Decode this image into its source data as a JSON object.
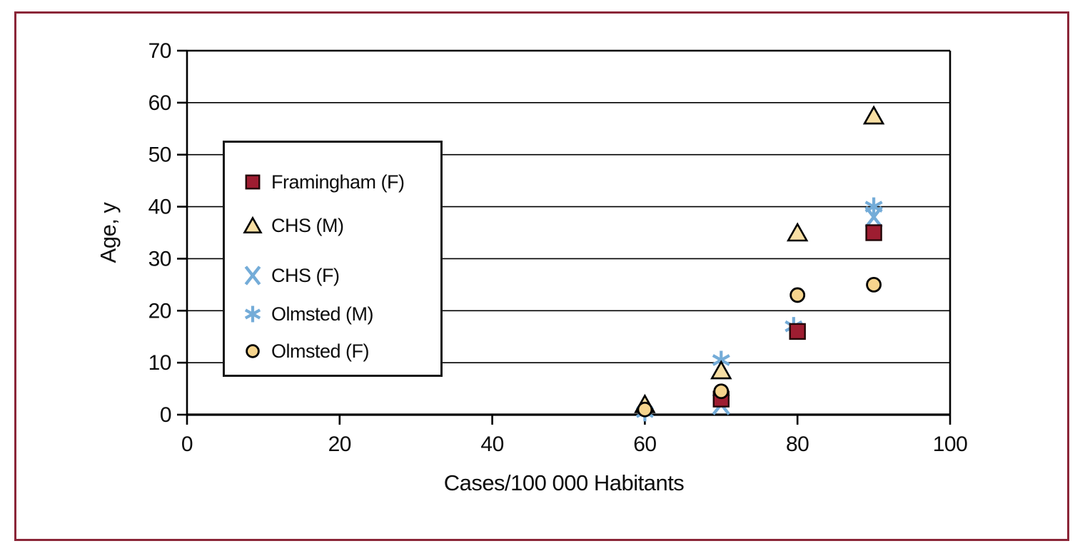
{
  "figure": {
    "border_color": "#8b2638",
    "background": "#ffffff"
  },
  "chart_data": {
    "type": "scatter",
    "title": "",
    "xlabel": "Cases/100 000 Habitants",
    "ylabel": "Age, y",
    "xlim": [
      0,
      100
    ],
    "ylim": [
      0,
      70
    ],
    "x_ticks": [
      0,
      20,
      40,
      60,
      80,
      100
    ],
    "y_ticks": [
      0,
      10,
      20,
      30,
      40,
      50,
      60,
      70
    ],
    "grid": "horizontal-only",
    "legend_position": "upper-left-inside",
    "axis_color": "#000000",
    "series": [
      {
        "name": "Framingham (F)",
        "marker": "square",
        "color": "#9e1d31",
        "border": "#230608",
        "points": [
          [
            70,
            3
          ],
          [
            80,
            16
          ],
          [
            90,
            35
          ]
        ]
      },
      {
        "name": "CHS (M)",
        "marker": "triangle",
        "color": "#f8dfa4",
        "border": "#000000",
        "points": [
          [
            60,
            2
          ],
          [
            70,
            8.5
          ],
          [
            80,
            35
          ],
          [
            90,
            57.5
          ]
        ]
      },
      {
        "name": "CHS (F)",
        "marker": "x",
        "color": "#74acd8",
        "points": [
          [
            70,
            2
          ],
          [
            90,
            38
          ]
        ]
      },
      {
        "name": "Olmsted (M)",
        "marker": "asterisk",
        "color": "#74acd8",
        "points": [
          [
            60,
            0.5
          ],
          [
            70,
            10.5
          ],
          [
            79.5,
            17
          ],
          [
            90,
            40
          ]
        ]
      },
      {
        "name": "Olmsted (F)",
        "marker": "circle",
        "color": "#f6d48d",
        "border": "#000000",
        "points": [
          [
            60,
            1
          ],
          [
            70,
            4.5
          ],
          [
            80,
            23
          ],
          [
            90,
            25
          ]
        ]
      }
    ]
  }
}
